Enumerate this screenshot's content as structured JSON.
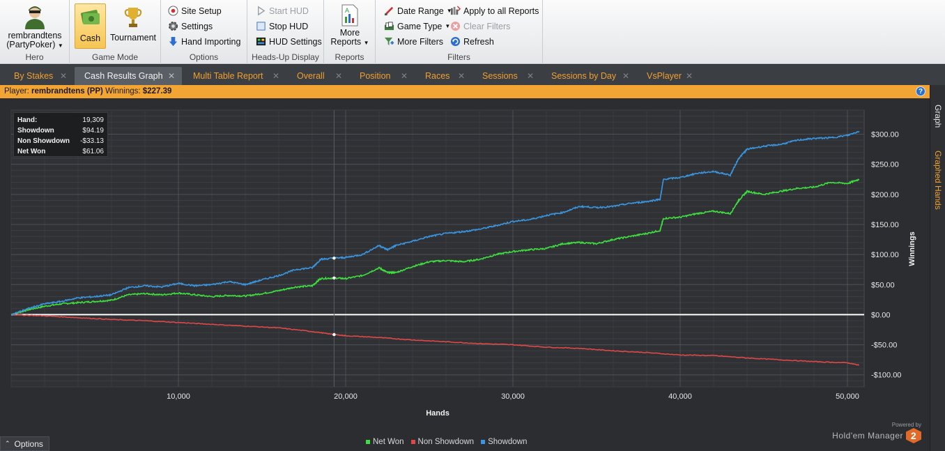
{
  "ribbon": {
    "hero": {
      "name_line1": "rembrandtens",
      "name_line2": "(PartyPoker)",
      "label": "Hero"
    },
    "game_mode": {
      "cash": "Cash",
      "tournament": "Tournament",
      "label": "Game Mode"
    },
    "options": {
      "site_setup": "Site Setup",
      "settings": "Settings",
      "hand_importing": "Hand Importing",
      "label": "Options"
    },
    "hud": {
      "start_hud": "Start HUD",
      "stop_hud": "Stop HUD",
      "hud_settings": "HUD Settings",
      "label": "Heads-Up Display"
    },
    "reports": {
      "more_reports_line1": "More",
      "more_reports_line2": "Reports",
      "label": "Reports"
    },
    "filters": {
      "date_range": "Date Range",
      "game_type": "Game Type",
      "more_filters": "More Filters",
      "apply_all": "Apply to all Reports",
      "clear_filters": "Clear Filters",
      "refresh": "Refresh",
      "label": "Filters"
    }
  },
  "tabs": [
    {
      "label": "By Stakes",
      "active": false
    },
    {
      "label": "Cash Results Graph",
      "active": true
    },
    {
      "label": "Multi Table Report",
      "active": false
    },
    {
      "label": "Overall",
      "active": false
    },
    {
      "label": "Position",
      "active": false
    },
    {
      "label": "Races",
      "active": false
    },
    {
      "label": "Sessions",
      "active": false
    },
    {
      "label": "Sessions by Day",
      "active": false
    },
    {
      "label": "VsPlayer",
      "active": false
    }
  ],
  "player_bar": {
    "player_label": "Player:",
    "player": "rembrandtens (PP)",
    "winnings_label": "Winnings:",
    "winnings": "$227.39"
  },
  "side_tabs": {
    "graph": "Graph",
    "graphed_hands": "Graphed Hands"
  },
  "stats": {
    "hand_label": "Hand:",
    "hand": "19,309",
    "showdown_label": "Showdown",
    "showdown": "$94.19",
    "non_showdown_label": "Non Showdown",
    "non_showdown": "-$33.13",
    "net_won_label": "Net Won",
    "net_won": "$61.06"
  },
  "bottom": {
    "options": "Options",
    "powered_by": "Powered by",
    "brand": "Hold'em Manager",
    "logo": "2"
  },
  "colors": {
    "net_won": "#3ee03e",
    "non_showdown": "#e04848",
    "showdown": "#3a96e0",
    "accent": "#f3a534"
  },
  "chart_data": {
    "type": "line",
    "xlabel": "Hands",
    "ylabel": "Winnings",
    "xlim": [
      0,
      51000
    ],
    "ylim": [
      -120,
      340
    ],
    "x_ticks": [
      10000,
      20000,
      30000,
      40000,
      50000
    ],
    "x_tick_labels": [
      "10,000",
      "20,000",
      "30,000",
      "40,000",
      "50,000"
    ],
    "y_ticks": [
      -100,
      -50,
      0,
      50,
      100,
      150,
      200,
      250,
      300
    ],
    "y_tick_labels": [
      "-$100.00",
      "-$50.00",
      "$0.00",
      "$50.00",
      "$100.00",
      "$150.00",
      "$200.00",
      "$250.00",
      "$300.00"
    ],
    "marker_x": 19309,
    "series": [
      {
        "name": "Net Won",
        "color": "#3ee03e",
        "points": [
          [
            0,
            0
          ],
          [
            1000,
            8
          ],
          [
            2000,
            14
          ],
          [
            3000,
            18
          ],
          [
            4000,
            20
          ],
          [
            5000,
            22
          ],
          [
            6000,
            24
          ],
          [
            7000,
            33
          ],
          [
            8000,
            35
          ],
          [
            9000,
            33
          ],
          [
            10000,
            36
          ],
          [
            11000,
            33
          ],
          [
            12000,
            30
          ],
          [
            13000,
            32
          ],
          [
            14000,
            31
          ],
          [
            15000,
            35
          ],
          [
            16000,
            40
          ],
          [
            17000,
            46
          ],
          [
            18000,
            48
          ],
          [
            18500,
            60
          ],
          [
            19309,
            61
          ],
          [
            20000,
            60
          ],
          [
            21000,
            65
          ],
          [
            22000,
            78
          ],
          [
            22500,
            70
          ],
          [
            23000,
            70
          ],
          [
            24000,
            80
          ],
          [
            25000,
            88
          ],
          [
            26000,
            90
          ],
          [
            27000,
            88
          ],
          [
            28000,
            92
          ],
          [
            29000,
            100
          ],
          [
            30000,
            105
          ],
          [
            31000,
            108
          ],
          [
            32000,
            110
          ],
          [
            33000,
            118
          ],
          [
            34000,
            120
          ],
          [
            35000,
            118
          ],
          [
            36000,
            125
          ],
          [
            37000,
            130
          ],
          [
            38000,
            135
          ],
          [
            38800,
            140
          ],
          [
            39000,
            160
          ],
          [
            40000,
            162
          ],
          [
            41000,
            168
          ],
          [
            42000,
            172
          ],
          [
            43000,
            168
          ],
          [
            43500,
            190
          ],
          [
            44000,
            205
          ],
          [
            45000,
            200
          ],
          [
            46000,
            205
          ],
          [
            47000,
            210
          ],
          [
            48000,
            212
          ],
          [
            49000,
            220
          ],
          [
            50000,
            218
          ],
          [
            50700,
            225
          ]
        ]
      },
      {
        "name": "Non Showdown",
        "color": "#e04848",
        "points": [
          [
            0,
            0
          ],
          [
            2000,
            -2
          ],
          [
            4000,
            -5
          ],
          [
            6000,
            -8
          ],
          [
            8000,
            -10
          ],
          [
            10000,
            -13
          ],
          [
            12000,
            -16
          ],
          [
            14000,
            -19
          ],
          [
            16000,
            -22
          ],
          [
            18000,
            -28
          ],
          [
            19309,
            -33
          ],
          [
            20000,
            -35
          ],
          [
            22000,
            -38
          ],
          [
            24000,
            -42
          ],
          [
            26000,
            -45
          ],
          [
            28000,
            -48
          ],
          [
            30000,
            -50
          ],
          [
            32000,
            -54
          ],
          [
            34000,
            -56
          ],
          [
            36000,
            -60
          ],
          [
            38000,
            -63
          ],
          [
            40000,
            -67
          ],
          [
            42000,
            -68
          ],
          [
            44000,
            -72
          ],
          [
            46000,
            -75
          ],
          [
            48000,
            -78
          ],
          [
            50000,
            -80
          ],
          [
            50700,
            -84
          ]
        ]
      },
      {
        "name": "Showdown",
        "color": "#3a96e0",
        "points": [
          [
            0,
            0
          ],
          [
            1000,
            10
          ],
          [
            2000,
            18
          ],
          [
            3000,
            22
          ],
          [
            4000,
            28
          ],
          [
            5000,
            30
          ],
          [
            6000,
            33
          ],
          [
            7000,
            45
          ],
          [
            8000,
            48
          ],
          [
            9000,
            46
          ],
          [
            10000,
            52
          ],
          [
            11000,
            48
          ],
          [
            12000,
            50
          ],
          [
            13000,
            55
          ],
          [
            14000,
            50
          ],
          [
            15000,
            58
          ],
          [
            16000,
            65
          ],
          [
            17000,
            75
          ],
          [
            18000,
            78
          ],
          [
            18500,
            92
          ],
          [
            19309,
            94
          ],
          [
            20000,
            95
          ],
          [
            21000,
            100
          ],
          [
            22000,
            115
          ],
          [
            22500,
            108
          ],
          [
            23000,
            115
          ],
          [
            24000,
            122
          ],
          [
            25000,
            130
          ],
          [
            26000,
            135
          ],
          [
            27000,
            138
          ],
          [
            28000,
            142
          ],
          [
            29000,
            148
          ],
          [
            30000,
            155
          ],
          [
            31000,
            158
          ],
          [
            32000,
            165
          ],
          [
            33000,
            170
          ],
          [
            34000,
            180
          ],
          [
            35000,
            178
          ],
          [
            36000,
            180
          ],
          [
            37000,
            185
          ],
          [
            38000,
            188
          ],
          [
            38800,
            192
          ],
          [
            39000,
            225
          ],
          [
            40000,
            228
          ],
          [
            41000,
            235
          ],
          [
            42000,
            238
          ],
          [
            43000,
            232
          ],
          [
            43500,
            260
          ],
          [
            44000,
            275
          ],
          [
            45000,
            280
          ],
          [
            46000,
            283
          ],
          [
            47000,
            290
          ],
          [
            48000,
            293
          ],
          [
            49000,
            294
          ],
          [
            50000,
            298
          ],
          [
            50700,
            305
          ]
        ]
      }
    ]
  }
}
